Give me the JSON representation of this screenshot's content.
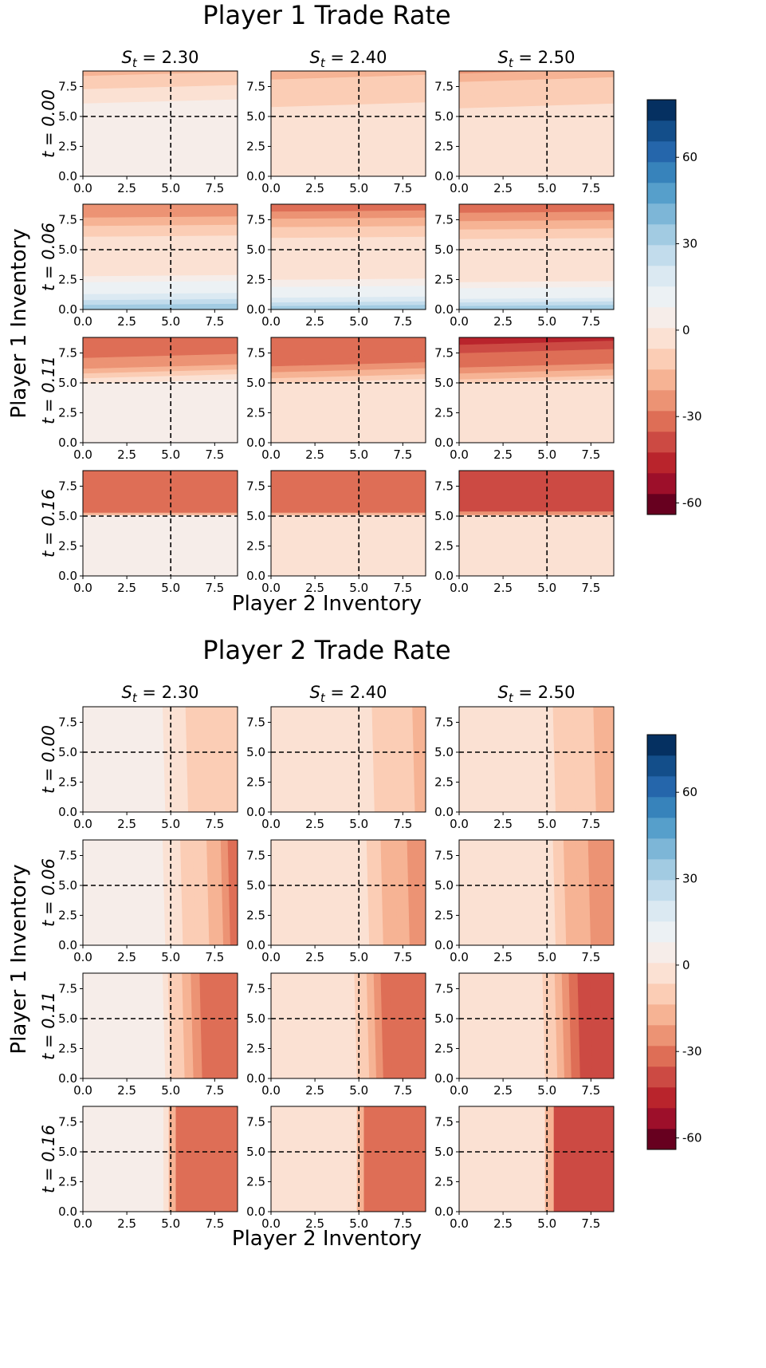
{
  "colors": {
    "bins": [
      "#67001f",
      "#9d0f2a",
      "#b9242c",
      "#cc4a43",
      "#de6e56",
      "#ec9374",
      "#f6b394",
      "#fbcdb5",
      "#fbe1d3",
      "#f6ede9",
      "#ecf1f4",
      "#dbe9f2",
      "#c2dcec",
      "#a2cbe2",
      "#7db6d7",
      "#569fcb",
      "#3783bb",
      "#2566ab",
      "#134e8a",
      "#053061"
    ],
    "frame": "#000000"
  },
  "chart_data": [
    {
      "type": "heatmap",
      "title": "Player 1 Trade Rate",
      "xlabel": "Player 2 Inventory",
      "ylabel": "Player 1 Inventory",
      "columns": [
        "S_t = 2.30",
        "S_t = 2.40",
        "S_t = 2.50"
      ],
      "columns_parts": [
        {
          "base": "S",
          "sub": "t",
          "val": " = 2.30"
        },
        {
          "base": "S",
          "sub": "t",
          "val": " = 2.40"
        },
        {
          "base": "S",
          "sub": "t",
          "val": " = 2.50"
        }
      ],
      "rows": [
        "t = 0.00",
        "t = 0.06",
        "t = 0.11",
        "t = 0.16"
      ],
      "xlim": [
        0,
        8.8
      ],
      "ylim": [
        0,
        8.8
      ],
      "xticks": [
        "0.0",
        "2.5",
        "5.0",
        "7.5"
      ],
      "yticks": [
        "0.0",
        "2.5",
        "5.0",
        "7.5"
      ],
      "reference_lines": {
        "x": 5.0,
        "y": 5.0
      },
      "orientation": "y",
      "colorbar": {
        "min": -64,
        "max": 80,
        "step": 7.2,
        "ticks": [
          "-60",
          "-30",
          "0",
          "30",
          "60"
        ]
      },
      "panels": [
        [
          {
            "tilt": 0.35,
            "bands": [
              [
                0,
                2
              ],
              [
                5.1,
                1
              ],
              [
                6.1,
                -6
              ],
              [
                7.3,
                -13
              ],
              [
                8.4,
                -17
              ]
            ]
          },
          {
            "tilt": 0.4,
            "bands": [
              [
                0,
                -4
              ],
              [
                5.05,
                -5
              ],
              [
                5.8,
                -8
              ],
              [
                6.9,
                -13
              ],
              [
                8.1,
                -18
              ]
            ]
          },
          {
            "tilt": 0.4,
            "bands": [
              [
                0,
                -4
              ],
              [
                5.0,
                -5
              ],
              [
                5.7,
                -8
              ],
              [
                6.7,
                -13
              ],
              [
                7.9,
                -18
              ],
              [
                8.6,
                -24
              ]
            ]
          }
        ],
        [
          {
            "tilt": 0.1,
            "bands": [
              [
                0,
                33
              ],
              [
                0.4,
                26
              ],
              [
                0.8,
                21
              ],
              [
                1.3,
                15
              ],
              [
                1.8,
                10
              ],
              [
                2.3,
                5
              ],
              [
                2.8,
                0
              ],
              [
                5.0,
                -6
              ],
              [
                6.1,
                -10
              ],
              [
                7.0,
                -15
              ],
              [
                7.7,
                -22
              ],
              [
                8.2,
                -27
              ]
            ]
          },
          {
            "tilt": 0.1,
            "bands": [
              [
                0,
                33
              ],
              [
                0.3,
                26
              ],
              [
                0.6,
                21
              ],
              [
                1.0,
                15
              ],
              [
                1.4,
                10
              ],
              [
                1.9,
                5
              ],
              [
                2.5,
                0
              ],
              [
                3.2,
                -4
              ],
              [
                5.0,
                -6
              ],
              [
                6.0,
                -12
              ],
              [
                6.9,
                -17
              ],
              [
                7.6,
                -22
              ],
              [
                8.2,
                -29
              ]
            ]
          },
          {
            "tilt": 0.1,
            "bands": [
              [
                0,
                33
              ],
              [
                0.3,
                26
              ],
              [
                0.6,
                21
              ],
              [
                0.9,
                15
              ],
              [
                1.3,
                10
              ],
              [
                1.8,
                5
              ],
              [
                2.3,
                0
              ],
              [
                3.0,
                -4
              ],
              [
                5.0,
                -6
              ],
              [
                5.9,
                -12
              ],
              [
                6.7,
                -17
              ],
              [
                7.4,
                -22
              ],
              [
                8.1,
                -29
              ]
            ]
          }
        ],
        [
          {
            "tilt": 0.35,
            "bands": [
              [
                0,
                2
              ],
              [
                4.95,
                -6
              ],
              [
                5.4,
                -11
              ],
              [
                5.8,
                -16
              ],
              [
                6.2,
                -22
              ],
              [
                6.6,
                -28
              ],
              [
                7.1,
                -34
              ]
            ]
          },
          {
            "tilt": 0.35,
            "bands": [
              [
                0,
                -4
              ],
              [
                5.0,
                -11
              ],
              [
                5.4,
                -18
              ],
              [
                5.9,
                -24
              ],
              [
                6.4,
                -29
              ],
              [
                6.9,
                -34
              ]
            ]
          },
          {
            "tilt": 0.35,
            "bands": [
              [
                0,
                -4
              ],
              [
                5.0,
                -11
              ],
              [
                5.3,
                -17
              ],
              [
                5.8,
                -22
              ],
              [
                6.3,
                -29
              ],
              [
                6.8,
                -35
              ],
              [
                7.5,
                -41
              ],
              [
                8.2,
                -47
              ]
            ]
          }
        ],
        [
          {
            "tilt": 0,
            "bands": [
              [
                0,
                2
              ],
              [
                5.1,
                -20
              ],
              [
                5.3,
                -34
              ]
            ]
          },
          {
            "tilt": 0,
            "bands": [
              [
                0,
                -4
              ],
              [
                5.1,
                -20
              ],
              [
                5.3,
                -34
              ]
            ]
          },
          {
            "tilt": 0,
            "bands": [
              [
                0,
                -4
              ],
              [
                5.1,
                -27
              ],
              [
                5.4,
                -40
              ]
            ]
          }
        ]
      ]
    },
    {
      "type": "heatmap",
      "title": "Player 2 Trade Rate",
      "xlabel": "Player 2 Inventory",
      "ylabel": "Player 1 Inventory",
      "columns": [
        "S_t = 2.30",
        "S_t = 2.40",
        "S_t = 2.50"
      ],
      "columns_parts": [
        {
          "base": "S",
          "sub": "t",
          "val": " = 2.30"
        },
        {
          "base": "S",
          "sub": "t",
          "val": " = 2.40"
        },
        {
          "base": "S",
          "sub": "t",
          "val": " = 2.50"
        }
      ],
      "rows": [
        "t = 0.00",
        "t = 0.06",
        "t = 0.11",
        "t = 0.16"
      ],
      "xlim": [
        0,
        8.8
      ],
      "ylim": [
        0,
        8.8
      ],
      "xticks": [
        "0.0",
        "2.5",
        "5.0",
        "7.5"
      ],
      "yticks": [
        "0.0",
        "2.5",
        "5.0",
        "7.5"
      ],
      "reference_lines": {
        "x": 5.0,
        "y": 5.0
      },
      "orientation": "x",
      "colorbar": {
        "min": -64,
        "max": 80,
        "step": 7.2,
        "ticks": [
          "-60",
          "-30",
          "0",
          "30",
          "60"
        ]
      },
      "panels": [
        [
          {
            "tilt": -0.15,
            "bands": [
              [
                0,
                2
              ],
              [
                4.7,
                -4
              ],
              [
                5.0,
                -5
              ],
              [
                6.0,
                -10
              ],
              [
                7.3,
                -13
              ]
            ]
          },
          {
            "tilt": -0.15,
            "bands": [
              [
                0,
                -4
              ],
              [
                5.0,
                -5
              ],
              [
                5.9,
                -10
              ],
              [
                7.0,
                -13
              ],
              [
                8.2,
                -18
              ]
            ]
          },
          {
            "tilt": -0.15,
            "bands": [
              [
                0,
                -4
              ],
              [
                5.0,
                -5
              ],
              [
                5.5,
                -8
              ],
              [
                6.6,
                -13
              ],
              [
                7.8,
                -18
              ]
            ]
          }
        ],
        [
          {
            "tilt": -0.15,
            "bands": [
              [
                0,
                2
              ],
              [
                4.7,
                -4
              ],
              [
                5.1,
                -6
              ],
              [
                5.7,
                -10
              ],
              [
                6.4,
                -13
              ],
              [
                7.2,
                -18
              ],
              [
                8.0,
                -25
              ],
              [
                8.4,
                -30
              ]
            ]
          },
          {
            "tilt": -0.15,
            "bands": [
              [
                0,
                -4
              ],
              [
                5.0,
                -6
              ],
              [
                5.6,
                -10
              ],
              [
                6.4,
                -15
              ],
              [
                7.2,
                -20
              ],
              [
                7.9,
                -27
              ]
            ]
          },
          {
            "tilt": -0.15,
            "bands": [
              [
                0,
                -4
              ],
              [
                5.0,
                -6
              ],
              [
                5.5,
                -10
              ],
              [
                6.1,
                -15
              ],
              [
                6.8,
                -20
              ],
              [
                7.5,
                -27
              ]
            ]
          }
        ],
        [
          {
            "tilt": -0.15,
            "bands": [
              [
                0,
                2
              ],
              [
                4.7,
                -4
              ],
              [
                5.0,
                -8
              ],
              [
                5.4,
                -13
              ],
              [
                5.8,
                -18
              ],
              [
                6.3,
                -25
              ],
              [
                6.8,
                -34
              ]
            ]
          },
          {
            "tilt": -0.15,
            "bands": [
              [
                0,
                -4
              ],
              [
                4.9,
                -8
              ],
              [
                5.2,
                -13
              ],
              [
                5.6,
                -18
              ],
              [
                6.0,
                -25
              ],
              [
                6.4,
                -30
              ],
              [
                6.9,
                -34
              ]
            ]
          },
          {
            "tilt": -0.15,
            "bands": [
              [
                0,
                -4
              ],
              [
                4.9,
                -8
              ],
              [
                5.2,
                -13
              ],
              [
                5.6,
                -18
              ],
              [
                6.0,
                -25
              ],
              [
                6.4,
                -30
              ],
              [
                6.9,
                -36
              ],
              [
                7.6,
                -41
              ]
            ]
          }
        ],
        [
          {
            "tilt": 0,
            "bands": [
              [
                0,
                2
              ],
              [
                4.6,
                -6
              ],
              [
                4.9,
                -20
              ],
              [
                5.3,
                -34
              ]
            ]
          },
          {
            "tilt": 0,
            "bands": [
              [
                0,
                -4
              ],
              [
                4.7,
                -6
              ],
              [
                4.9,
                -20
              ],
              [
                5.3,
                -34
              ]
            ]
          },
          {
            "tilt": 0,
            "bands": [
              [
                0,
                -4
              ],
              [
                4.6,
                -6
              ],
              [
                4.9,
                -20
              ],
              [
                5.4,
                -40
              ]
            ]
          }
        ]
      ]
    }
  ]
}
